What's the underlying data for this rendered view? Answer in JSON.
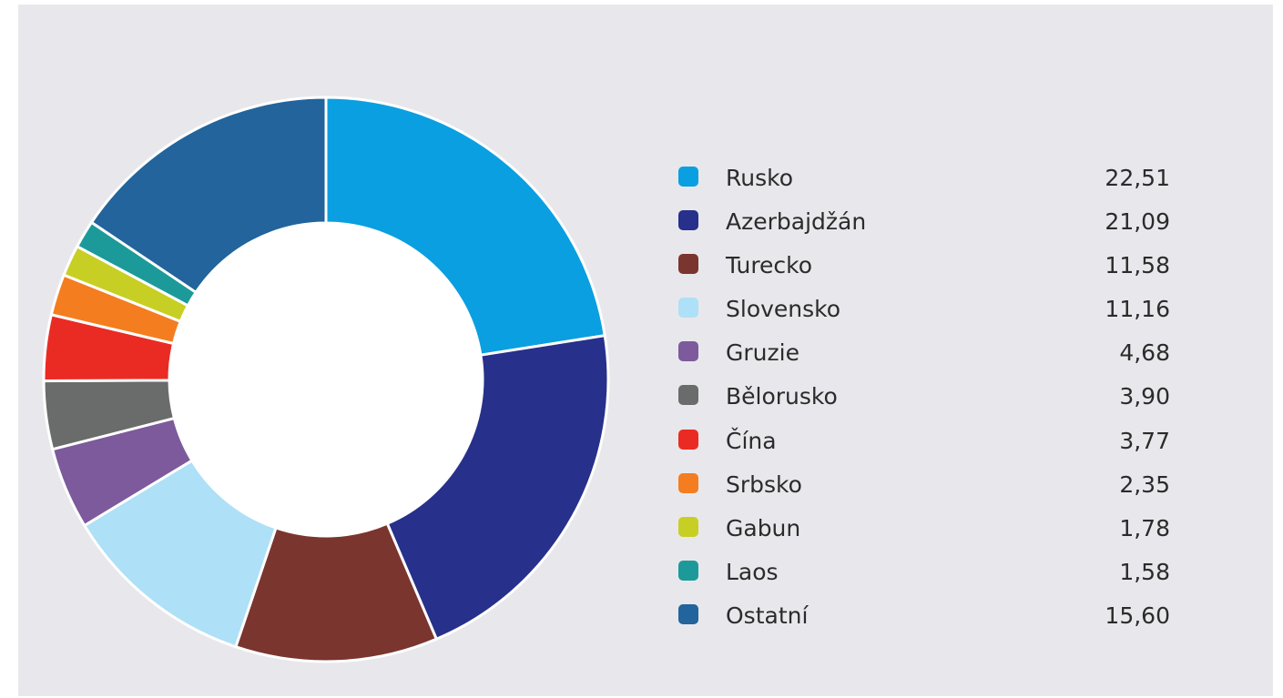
{
  "chart_data": {
    "type": "pie",
    "variant": "donut",
    "legend_position": "right",
    "slices": [
      {
        "label": "Rusko",
        "value": 22.51,
        "display": "22,51",
        "color": "#0a9fe0"
      },
      {
        "label": "Azerbajdžán",
        "value": 21.09,
        "display": "21,09",
        "color": "#27308a"
      },
      {
        "label": "Turecko",
        "value": 11.58,
        "display": "11,58",
        "color": "#7a352e"
      },
      {
        "label": "Slovensko",
        "value": 11.16,
        "display": "11,16",
        "color": "#aee0f7"
      },
      {
        "label": "Gruzie",
        "value": 4.68,
        "display": "4,68",
        "color": "#7c5a9c"
      },
      {
        "label": "Bělorusko",
        "value": 3.9,
        "display": "3,90",
        "color": "#6a6b6b"
      },
      {
        "label": "Čína",
        "value": 3.77,
        "display": "3,77",
        "color": "#ea2b24"
      },
      {
        "label": "Srbsko",
        "value": 2.35,
        "display": "2,35",
        "color": "#f47d20"
      },
      {
        "label": "Gabun",
        "value": 1.78,
        "display": "1,78",
        "color": "#c7cf24"
      },
      {
        "label": "Laos",
        "value": 1.58,
        "display": "1,58",
        "color": "#1c9a9a"
      },
      {
        "label": "Ostatní",
        "value": 15.6,
        "display": "15,60",
        "color": "#22649b"
      }
    ]
  }
}
